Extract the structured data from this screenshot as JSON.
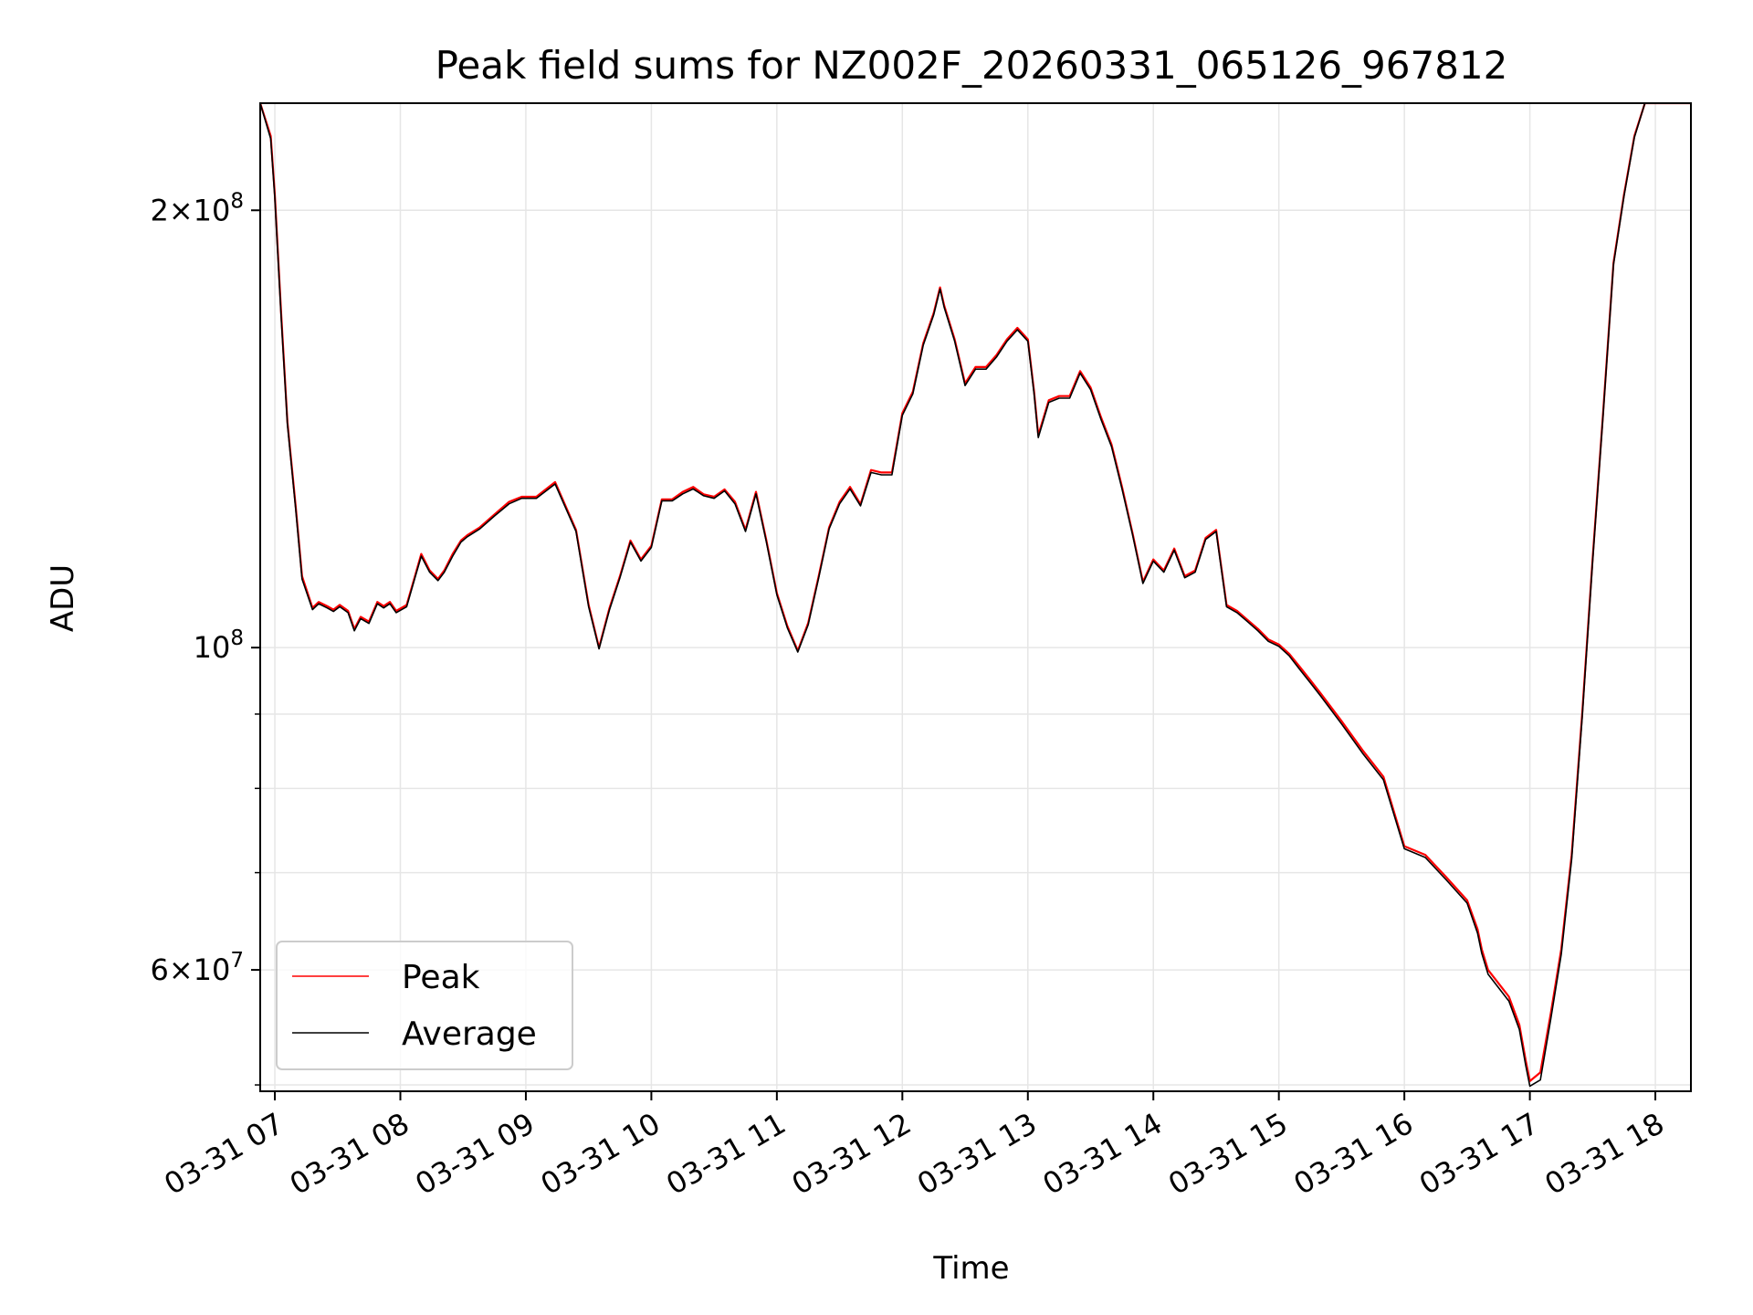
{
  "chart_data": {
    "type": "line",
    "title": "Peak field sums for NZ002F_20260331_065126_967812",
    "xlabel": "Time",
    "ylabel": "ADU",
    "y_scale": "log",
    "ylim": [
      49500000,
      237000000
    ],
    "xlim": [
      "03-31 06:53",
      "03-31 18:17"
    ],
    "grid": true,
    "legend_position": "lower-left",
    "x_ticks": [
      "03-31 07",
      "03-31 08",
      "03-31 09",
      "03-31 10",
      "03-31 11",
      "03-31 12",
      "03-31 13",
      "03-31 14",
      "03-31 15",
      "03-31 16",
      "03-31 17",
      "03-31 18"
    ],
    "y_ticks": [
      {
        "value": 200000000,
        "label_mantissa": "2",
        "label_exponent": "8"
      },
      {
        "value": 100000000,
        "label_mantissa": "",
        "label_exponent": "8"
      },
      {
        "value": 60000000,
        "label_mantissa": "6",
        "label_exponent": "7"
      }
    ],
    "y_minor_ticks": [
      50000000,
      70000000,
      80000000,
      90000000
    ],
    "x": [
      "03-31 06:53",
      "03-31 06:58",
      "03-31 07:00",
      "03-31 07:03",
      "03-31 07:06",
      "03-31 07:10",
      "03-31 07:13",
      "03-31 07:18",
      "03-31 07:21",
      "03-31 07:25",
      "03-31 07:28",
      "03-31 07:31",
      "03-31 07:35",
      "03-31 07:38",
      "03-31 07:41",
      "03-31 07:45",
      "03-31 07:49",
      "03-31 07:52",
      "03-31 07:55",
      "03-31 07:58",
      "03-31 08:03",
      "03-31 08:07",
      "03-31 08:10",
      "03-31 08:14",
      "03-31 08:18",
      "03-31 08:21",
      "03-31 08:25",
      "03-31 08:29",
      "03-31 08:32",
      "03-31 08:38",
      "03-31 08:45",
      "03-31 08:52",
      "03-31 08:58",
      "03-31 09:05",
      "03-31 09:14",
      "03-31 09:24",
      "03-31 09:30",
      "03-31 09:35",
      "03-31 09:40",
      "03-31 09:45",
      "03-31 09:50",
      "03-31 09:55",
      "03-31 10:00",
      "03-31 10:05",
      "03-31 10:10",
      "03-31 10:15",
      "03-31 10:20",
      "03-31 10:25",
      "03-31 10:30",
      "03-31 10:35",
      "03-31 10:40",
      "03-31 10:45",
      "03-31 10:50",
      "03-31 10:55",
      "03-31 11:00",
      "03-31 11:05",
      "03-31 11:10",
      "03-31 11:15",
      "03-31 11:20",
      "03-31 11:25",
      "03-31 11:30",
      "03-31 11:35",
      "03-31 11:40",
      "03-31 11:45",
      "03-31 11:50",
      "03-31 11:55",
      "03-31 12:00",
      "03-31 12:05",
      "03-31 12:10",
      "03-31 12:15",
      "03-31 12:18",
      "03-31 12:20",
      "03-31 12:25",
      "03-31 12:30",
      "03-31 12:35",
      "03-31 12:40",
      "03-31 12:45",
      "03-31 12:50",
      "03-31 12:55",
      "03-31 13:00",
      "03-31 13:03",
      "03-31 13:05",
      "03-31 13:10",
      "03-31 13:15",
      "03-31 13:20",
      "03-31 13:25",
      "03-31 13:30",
      "03-31 13:35",
      "03-31 13:40",
      "03-31 13:45",
      "03-31 13:50",
      "03-31 13:55",
      "03-31 14:00",
      "03-31 14:05",
      "03-31 14:10",
      "03-31 14:15",
      "03-31 14:20",
      "03-31 14:25",
      "03-31 14:30",
      "03-31 14:35",
      "03-31 14:40",
      "03-31 14:45",
      "03-31 14:50",
      "03-31 14:55",
      "03-31 15:00",
      "03-31 15:05",
      "03-31 15:10",
      "03-31 15:15",
      "03-31 15:20",
      "03-31 15:30",
      "03-31 15:40",
      "03-31 15:50",
      "03-31 16:00",
      "03-31 16:10",
      "03-31 16:20",
      "03-31 16:30",
      "03-31 16:35",
      "03-31 16:37",
      "03-31 16:40",
      "03-31 16:50",
      "03-31 16:55",
      "03-31 16:58",
      "03-31 17:00",
      "03-31 17:05",
      "03-31 17:10",
      "03-31 17:15",
      "03-31 17:20",
      "03-31 17:25",
      "03-31 17:30",
      "03-31 17:35",
      "03-31 17:40",
      "03-31 17:45",
      "03-31 17:50",
      "03-31 17:55",
      "03-31 18:00",
      "03-31 18:05",
      "03-31 18:10",
      "03-31 18:17"
    ],
    "series": [
      {
        "name": "Peak",
        "color": "#ff0000",
        "values": [
          237000000,
          225000000,
          205000000,
          170000000,
          143000000,
          125000000,
          112000000,
          106500000,
          107500000,
          106800000,
          106200000,
          107000000,
          106000000,
          103000000,
          105000000,
          104200000,
          107500000,
          106800000,
          107500000,
          106000000,
          107000000,
          112000000,
          116000000,
          113000000,
          111500000,
          113000000,
          116000000,
          118500000,
          119500000,
          121000000,
          123500000,
          126000000,
          127000000,
          127000000,
          130000000,
          120500000,
          107000000,
          100000000,
          106500000,
          112000000,
          118500000,
          115000000,
          117500000,
          126500000,
          126500000,
          128000000,
          129000000,
          127500000,
          127000000,
          128500000,
          126000000,
          120500000,
          128000000,
          118500000,
          109000000,
          103500000,
          99500000,
          104000000,
          112000000,
          121000000,
          126000000,
          129000000,
          125500000,
          132500000,
          132000000,
          132000000,
          145000000,
          150000000,
          162000000,
          170000000,
          177000000,
          172000000,
          163000000,
          152000000,
          156000000,
          156000000,
          159000000,
          163000000,
          166000000,
          163000000,
          150000000,
          140000000,
          148000000,
          149000000,
          149000000,
          155000000,
          151000000,
          144000000,
          138000000,
          129000000,
          120000000,
          111000000,
          115000000,
          113000000,
          117000000,
          112000000,
          113000000,
          119000000,
          120500000,
          107000000,
          106000000,
          104500000,
          103000000,
          101300000,
          100500000,
          99000000,
          97000000,
          95000000,
          93000000,
          89000000,
          85000000,
          81500000,
          73000000,
          72000000,
          69500000,
          67000000,
          64000000,
          62000000,
          60000000,
          57500000,
          55000000,
          52000000,
          50300000,
          51000000,
          56000000,
          62000000,
          72000000,
          90000000,
          115000000,
          145000000,
          184000000,
          205000000,
          225000000,
          237000000,
          237000000,
          237000000,
          237000000,
          237000000
        ]
      },
      {
        "name": "Average",
        "color": "#000000",
        "values": [
          237000000,
          224000000,
          204000000,
          169000000,
          142500000,
          124500000,
          111500000,
          106200000,
          107200000,
          106500000,
          105900000,
          106700000,
          105700000,
          102700000,
          104700000,
          103900000,
          107200000,
          106500000,
          107200000,
          105700000,
          106700000,
          111700000,
          115600000,
          112700000,
          111200000,
          112700000,
          115600000,
          118200000,
          119200000,
          120700000,
          123200000,
          125600000,
          126700000,
          126700000,
          129600000,
          120200000,
          106700000,
          99800000,
          106200000,
          111700000,
          118200000,
          114700000,
          117200000,
          126200000,
          126200000,
          127600000,
          128600000,
          127200000,
          126700000,
          128200000,
          125600000,
          120200000,
          127600000,
          118200000,
          108700000,
          103200000,
          99300000,
          103700000,
          111700000,
          120700000,
          125600000,
          128600000,
          125200000,
          132000000,
          131500000,
          131500000,
          144500000,
          149500000,
          161500000,
          169500000,
          176500000,
          171500000,
          162500000,
          151500000,
          155500000,
          155500000,
          158500000,
          162500000,
          165500000,
          162500000,
          149500000,
          139500000,
          147500000,
          148500000,
          148500000,
          154500000,
          150500000,
          143500000,
          137500000,
          128600000,
          119700000,
          110700000,
          114700000,
          112700000,
          116700000,
          111700000,
          112700000,
          118700000,
          120200000,
          106700000,
          105700000,
          104200000,
          102700000,
          101000000,
          100200000,
          98700000,
          96600000,
          94600000,
          92600000,
          88600000,
          84600000,
          81100000,
          72700000,
          71700000,
          69200000,
          66700000,
          63600000,
          61600000,
          59600000,
          57100000,
          54600000,
          51600000,
          49900000,
          50400000,
          55500000,
          61500000,
          71500000,
          89500000,
          114500000,
          144500000,
          183500000,
          204500000,
          224500000,
          237000000,
          237000000,
          237000000,
          237000000,
          237000000
        ]
      }
    ]
  }
}
